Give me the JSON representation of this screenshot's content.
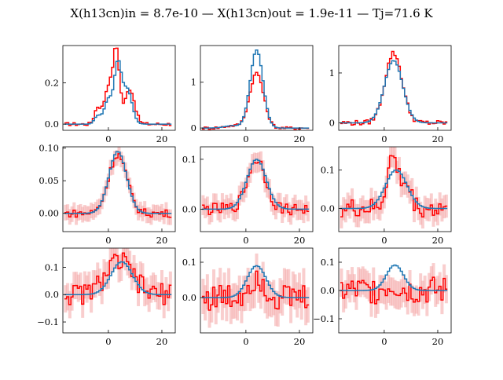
{
  "title": "X(h13cn)in = 8.7e-10 — X(h13cn)out = 1.9e-11 — Tj=71.6 K",
  "colors": {
    "observed": "#ff0000",
    "model": "#1f77b4",
    "error_band": "#f4a6a6"
  },
  "chart_data": [
    {
      "type": "line",
      "xlim": [
        -17,
        25
      ],
      "ylim": [
        -0.03,
        0.38
      ],
      "xticks": [
        "0",
        "20"
      ],
      "xtick_values": [
        0,
        20
      ],
      "yticks": [
        "0.0",
        "0.2"
      ],
      "ytick_values": [
        0,
        0.2
      ],
      "errors": false,
      "noise": 0.008,
      "series": [
        {
          "role": "observed",
          "peaks": [
            [
              3,
              0.35,
              1.2
            ],
            [
              0,
              0.18,
              1.5
            ],
            [
              8,
              0.17,
              1.8
            ],
            [
              -4,
              0.08,
              1.2
            ]
          ]
        },
        {
          "role": "model",
          "peaks": [
            [
              3.5,
              0.28,
              1.3
            ],
            [
              0,
              0.12,
              1.5
            ],
            [
              7,
              0.17,
              1.8
            ],
            [
              -4,
              0.04,
              1.2
            ]
          ]
        }
      ]
    },
    {
      "type": "line",
      "xlim": [
        -17,
        25
      ],
      "ylim": [
        -0.05,
        1.8
      ],
      "xticks": [
        "0",
        "20"
      ],
      "xtick_values": [
        0,
        20
      ],
      "yticks": [
        "0",
        "1"
      ],
      "ytick_values": [
        0,
        1
      ],
      "errors": false,
      "noise": 0.03,
      "series": [
        {
          "role": "observed",
          "peaks": [
            [
              4,
              1.2,
              2.6
            ],
            [
              -5,
              0.05,
              3
            ]
          ]
        },
        {
          "role": "model",
          "peaks": [
            [
              4,
              1.7,
              2.4
            ],
            [
              -5,
              0.05,
              3
            ]
          ]
        }
      ]
    },
    {
      "type": "line",
      "xlim": [
        -17,
        25
      ],
      "ylim": [
        -0.15,
        1.55
      ],
      "xticks": [
        "0",
        "20"
      ],
      "xtick_values": [
        0,
        20
      ],
      "yticks": [
        "0",
        "1"
      ],
      "ytick_values": [
        0,
        1
      ],
      "errors": false,
      "noise": 0.05,
      "series": [
        {
          "role": "observed",
          "peaks": [
            [
              3.5,
              1.4,
              3.2
            ]
          ]
        },
        {
          "role": "model",
          "peaks": [
            [
              3.5,
              1.25,
              3.4
            ]
          ]
        }
      ]
    },
    {
      "type": "line",
      "xlim": [
        -17,
        25
      ],
      "ylim": [
        -0.028,
        0.102
      ],
      "xticks": [
        "0",
        "20"
      ],
      "xtick_values": [
        0,
        20
      ],
      "yticks": [
        "0.00",
        "0.05",
        "0.10"
      ],
      "ytick_values": [
        0,
        0.05,
        0.1
      ],
      "errors": true,
      "err": 0.012,
      "noise": 0.006,
      "series": [
        {
          "role": "observed",
          "peaks": [
            [
              3.5,
              0.09,
              3.4
            ]
          ]
        },
        {
          "role": "model",
          "peaks": [
            [
              3.5,
              0.095,
              3.3
            ]
          ]
        }
      ]
    },
    {
      "type": "line",
      "xlim": [
        -17,
        25
      ],
      "ylim": [
        -0.045,
        0.125
      ],
      "xticks": [
        "0",
        "20"
      ],
      "xtick_values": [
        0,
        20
      ],
      "yticks": [
        "0.0",
        "0.1"
      ],
      "ytick_values": [
        0,
        0.1
      ],
      "errors": true,
      "err": 0.02,
      "noise": 0.012,
      "series": [
        {
          "role": "observed",
          "peaks": [
            [
              4,
              0.1,
              3.4
            ]
          ]
        },
        {
          "role": "model",
          "peaks": [
            [
              4,
              0.1,
              3.6
            ]
          ]
        }
      ]
    },
    {
      "type": "line",
      "xlim": [
        -17,
        25
      ],
      "ylim": [
        -0.06,
        0.16
      ],
      "xticks": [
        "0",
        "20"
      ],
      "xtick_values": [
        0,
        20
      ],
      "yticks": [
        "0.0",
        "0.1"
      ],
      "ytick_values": [
        0,
        0.1
      ],
      "errors": true,
      "err": 0.03,
      "noise": 0.025,
      "series": [
        {
          "role": "observed",
          "peaks": [
            [
              3,
              0.13,
              2
            ],
            [
              8,
              0.06,
              2
            ]
          ]
        },
        {
          "role": "model",
          "peaks": [
            [
              4.5,
              0.1,
              4
            ]
          ]
        }
      ]
    },
    {
      "type": "line",
      "xlim": [
        -17,
        25
      ],
      "ylim": [
        -0.14,
        0.17
      ],
      "xticks": [
        "0",
        "20"
      ],
      "xtick_values": [
        0,
        20
      ],
      "yticks": [
        "−0.1",
        "0.0",
        "0.1"
      ],
      "ytick_values": [
        -0.1,
        0,
        0.1
      ],
      "errors": true,
      "err": 0.05,
      "noise": 0.04,
      "series": [
        {
          "role": "observed",
          "peaks": [
            [
              4,
              0.12,
              5
            ]
          ]
        },
        {
          "role": "model",
          "peaks": [
            [
              5,
              0.12,
              4
            ]
          ]
        }
      ]
    },
    {
      "type": "line",
      "xlim": [
        -17,
        25
      ],
      "ylim": [
        -0.1,
        0.14
      ],
      "xticks": [
        "0",
        "20"
      ],
      "xtick_values": [
        0,
        20
      ],
      "yticks": [
        "0.0",
        "0.1"
      ],
      "ytick_values": [
        0,
        0.1
      ],
      "errors": true,
      "err": 0.05,
      "noise": 0.04,
      "series": [
        {
          "role": "observed",
          "peaks": [
            [
              4,
              0.06,
              3
            ]
          ]
        },
        {
          "role": "model",
          "peaks": [
            [
              4,
              0.09,
              3.5
            ]
          ]
        }
      ]
    },
    {
      "type": "line",
      "xlim": [
        -17,
        25
      ],
      "ylim": [
        -0.15,
        0.15
      ],
      "xticks": [
        "0",
        "20"
      ],
      "xtick_values": [
        0,
        20
      ],
      "yticks": [
        "−0.1",
        "0.0",
        "0.1"
      ],
      "ytick_values": [
        -0.1,
        0,
        0.1
      ],
      "errors": true,
      "err": 0.05,
      "noise": 0.05,
      "series": [
        {
          "role": "observed",
          "peaks": [
            [
              3,
              0.02,
              3
            ]
          ]
        },
        {
          "role": "model",
          "peaks": [
            [
              4,
              0.09,
              3.2
            ]
          ]
        }
      ]
    }
  ]
}
